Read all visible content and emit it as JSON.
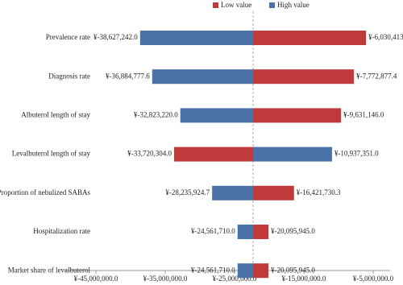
{
  "chart_data": {
    "type": "tornado",
    "categories": [
      "Prevalence rate",
      "Diagnosis rate",
      "Albuterol length of stay",
      "Levalbuterol length of stay",
      "Proportion of nebulized SABAs",
      "Hospitalization rate",
      "Market share of levalbuterol"
    ],
    "series": [
      {
        "name": "Low value",
        "color": "#c0393b",
        "values": [
          -6030413.0,
          -7772877.4,
          -9631146.0,
          -33720304.0,
          -16421730.3,
          -20095945.0,
          -20095945.0
        ],
        "value_labels": [
          "¥-6,030,413.0",
          "¥-7,772,877.4",
          "¥-9,631,146.0",
          "¥-33,720,304.0",
          "¥-16,421,730.3",
          "¥-20,095,945.0",
          "¥-20,095,945.0"
        ]
      },
      {
        "name": "High value",
        "color": "#4a72a8",
        "values": [
          -38627242.0,
          -36884777.6,
          -32823220.0,
          -10937351.0,
          -28235924.7,
          -24561710.0,
          -24561710.0
        ],
        "value_labels": [
          "¥-38,627,242.0",
          "¥-36,884,777.6",
          "¥-32,823,220.0",
          "¥-10,937,351.0",
          "¥-28,235,924.7",
          "¥-24,561,710.0",
          "¥-24,561,710.0"
        ]
      }
    ],
    "reference_line": -22330000,
    "xlim": [
      -45000000,
      -5000000
    ],
    "xticks": [
      {
        "value": -45000000,
        "label": "¥-45,000,000.0"
      },
      {
        "value": -35000000,
        "label": "¥-35,000,000.0"
      },
      {
        "value": -25000000,
        "label": "¥-25,000,000.0"
      },
      {
        "value": -15000000,
        "label": "¥-15,000,000.0"
      },
      {
        "value": -5000000,
        "label": "¥-5,000,000.0"
      }
    ]
  }
}
